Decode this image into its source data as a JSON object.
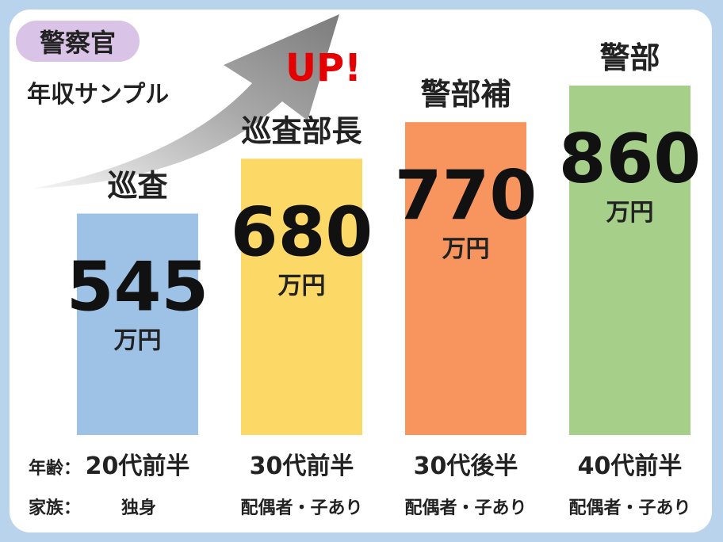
{
  "header": {
    "badge": "警察官",
    "subtitle": "年収サンプル",
    "up_text": "UP!"
  },
  "row_labels": {
    "age": "年齢：",
    "family": "家族："
  },
  "colors": {
    "background": "#b9d3ec",
    "badge": "#d9c3e6",
    "up_text": "#e40000",
    "bars": [
      "#9ec1e6",
      "#fcd867",
      "#f8955f",
      "#a6d08a"
    ]
  },
  "chart_data": {
    "type": "bar",
    "categories": [
      "巡査",
      "巡査部長",
      "警部補",
      "警部"
    ],
    "values": [
      545,
      680,
      770,
      860
    ],
    "value_labels": [
      "545",
      "680",
      "770",
      "860"
    ],
    "unit": "万円",
    "ages": [
      "20代前半",
      "30代前半",
      "30代後半",
      "40代前半"
    ],
    "families": [
      "独身",
      "配偶者・子あり",
      "配偶者・子あり",
      "配偶者・子あり"
    ],
    "title": "",
    "xlabel": "",
    "ylabel": "",
    "grid": false,
    "legend": "none"
  }
}
